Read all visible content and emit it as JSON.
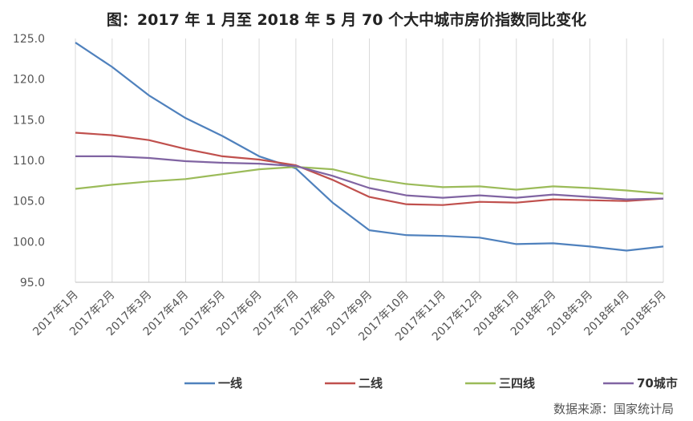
{
  "chart_data": {
    "type": "line",
    "title": "图：2017 年 1 月至 2018 年 5 月 70 个大中城市房价指数同比变化",
    "categories": [
      "2017年1月",
      "2017年2月",
      "2017年3月",
      "2017年4月",
      "2017年5月",
      "2017年6月",
      "2017年7月",
      "2017年8月",
      "2017年9月",
      "2017年10月",
      "2017年11月",
      "2017年12月",
      "2018年1月",
      "2018年2月",
      "2018年3月",
      "2018年4月",
      "2018年5月"
    ],
    "ylim": [
      95,
      125
    ],
    "yticks": [
      "95.0",
      "100.0",
      "105.0",
      "110.0",
      "115.0",
      "120.0",
      "125.0"
    ],
    "grid": "vertical",
    "legend_position": "bottom",
    "series": [
      {
        "name": "一线",
        "color": "#4f81bd",
        "values": [
          124.5,
          121.5,
          118.0,
          115.2,
          113.0,
          110.5,
          109.0,
          104.8,
          101.4,
          100.8,
          100.7,
          100.5,
          99.7,
          99.8,
          99.4,
          98.9,
          99.4
        ]
      },
      {
        "name": "二线",
        "color": "#c0504d",
        "values": [
          113.4,
          113.1,
          112.5,
          111.4,
          110.5,
          110.1,
          109.4,
          107.6,
          105.5,
          104.6,
          104.5,
          104.9,
          104.8,
          105.2,
          105.1,
          105.0,
          105.3
        ]
      },
      {
        "name": "三四线",
        "color": "#9bbb59",
        "values": [
          106.5,
          107.0,
          107.4,
          107.7,
          108.3,
          108.9,
          109.2,
          108.9,
          107.8,
          107.1,
          106.7,
          106.8,
          106.4,
          106.8,
          106.6,
          106.3,
          105.9
        ]
      },
      {
        "name": "70城市",
        "color": "#8064a2",
        "values": [
          110.5,
          110.5,
          110.3,
          109.9,
          109.7,
          109.6,
          109.3,
          108.1,
          106.6,
          105.7,
          105.4,
          105.7,
          105.4,
          105.8,
          105.5,
          105.2,
          105.3
        ]
      }
    ],
    "source": "数据来源：国家统计局"
  }
}
